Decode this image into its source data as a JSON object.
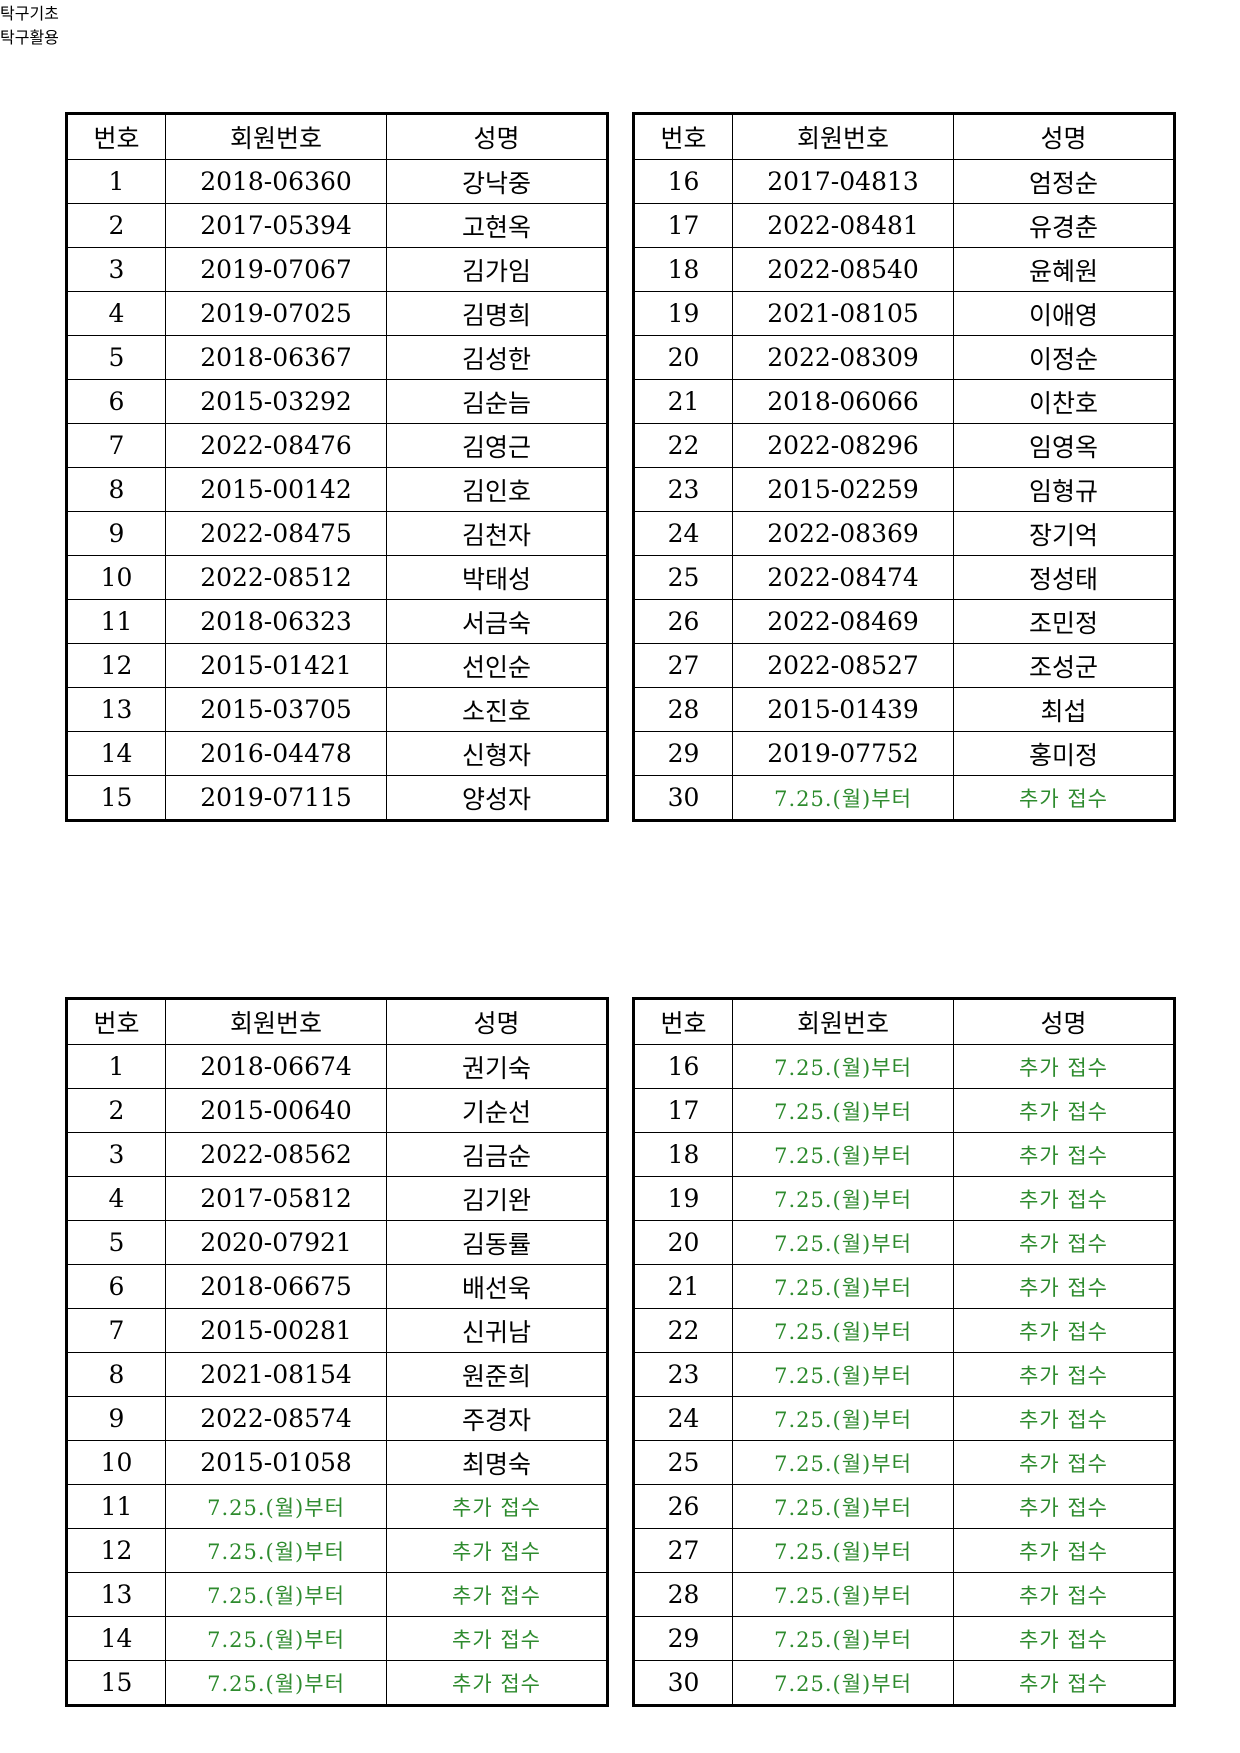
{
  "sections": [
    {
      "title": "탁구기초",
      "tables": [
        {
          "headers": [
            "번호",
            "회원번호",
            "성명"
          ],
          "rows": [
            [
              1,
              "2018-06360",
              "강낙중"
            ],
            [
              2,
              "2017-05394",
              "고현옥"
            ],
            [
              3,
              "2019-07067",
              "김가임"
            ],
            [
              4,
              "2019-07025",
              "김명희"
            ],
            [
              5,
              "2018-06367",
              "김성한"
            ],
            [
              6,
              "2015-03292",
              "김순늠"
            ],
            [
              7,
              "2022-08476",
              "김영근"
            ],
            [
              8,
              "2015-00142",
              "김인호"
            ],
            [
              9,
              "2022-08475",
              "김천자"
            ],
            [
              10,
              "2022-08512",
              "박태성"
            ],
            [
              11,
              "2018-06323",
              "서금숙"
            ],
            [
              12,
              "2015-01421",
              "선인순"
            ],
            [
              13,
              "2015-03705",
              "소진호"
            ],
            [
              14,
              "2016-04478",
              "신형자"
            ],
            [
              15,
              "2019-07115",
              "양성자"
            ]
          ]
        },
        {
          "headers": [
            "번호",
            "회원번호",
            "성명"
          ],
          "rows": [
            [
              16,
              "2017-04813",
              "엄정순"
            ],
            [
              17,
              "2022-08481",
              "유경춘"
            ],
            [
              18,
              "2022-08540",
              "윤혜원"
            ],
            [
              19,
              "2021-08105",
              "이애영"
            ],
            [
              20,
              "2022-08309",
              "이정순"
            ],
            [
              21,
              "2018-06066",
              "이찬호"
            ],
            [
              22,
              "2022-08296",
              "임영옥"
            ],
            [
              23,
              "2015-02259",
              "임형규"
            ],
            [
              24,
              "2022-08369",
              "장기억"
            ],
            [
              25,
              "2022-08474",
              "정성태"
            ],
            [
              26,
              "2022-08469",
              "조민정"
            ],
            [
              27,
              "2022-08527",
              "조성군"
            ],
            [
              28,
              "2015-01439",
              "최섭"
            ],
            [
              29,
              "2019-07752",
              "홍미정"
            ],
            [
              30,
              "7.25.(월)부터",
              "추가 접수"
            ]
          ]
        }
      ]
    },
    {
      "title": "탁구활용",
      "tables": [
        {
          "headers": [
            "번호",
            "회원번호",
            "성명"
          ],
          "rows": [
            [
              1,
              "2018-06674",
              "권기숙"
            ],
            [
              2,
              "2015-00640",
              "기순선"
            ],
            [
              3,
              "2022-08562",
              "김금순"
            ],
            [
              4,
              "2017-05812",
              "김기완"
            ],
            [
              5,
              "2020-07921",
              "김동률"
            ],
            [
              6,
              "2018-06675",
              "배선욱"
            ],
            [
              7,
              "2015-00281",
              "신귀남"
            ],
            [
              8,
              "2021-08154",
              "원준희"
            ],
            [
              9,
              "2022-08574",
              "주경자"
            ],
            [
              10,
              "2015-01058",
              "최명숙"
            ],
            [
              11,
              "7.25.(월)부터",
              "추가 접수"
            ],
            [
              12,
              "7.25.(월)부터",
              "추가 접수"
            ],
            [
              13,
              "7.25.(월)부터",
              "추가 접수"
            ],
            [
              14,
              "7.25.(월)부터",
              "추가 접수"
            ],
            [
              15,
              "7.25.(월)부터",
              "추가 접수"
            ]
          ]
        },
        {
          "headers": [
            "번호",
            "회원번호",
            "성명"
          ],
          "rows": [
            [
              16,
              "7.25.(월)부터",
              "추가 접수"
            ],
            [
              17,
              "7.25.(월)부터",
              "추가 접수"
            ],
            [
              18,
              "7.25.(월)부터",
              "추가 접수"
            ],
            [
              19,
              "7.25.(월)부터",
              "추가 접수"
            ],
            [
              20,
              "7.25.(월)부터",
              "추가 접수"
            ],
            [
              21,
              "7.25.(월)부터",
              "추가 접수"
            ],
            [
              22,
              "7.25.(월)부터",
              "추가 접수"
            ],
            [
              23,
              "7.25.(월)부터",
              "추가 접수"
            ],
            [
              24,
              "7.25.(월)부터",
              "추가 접수"
            ],
            [
              25,
              "7.25.(월)부터",
              "추가 접수"
            ],
            [
              26,
              "7.25.(월)부터",
              "추가 접수"
            ],
            [
              27,
              "7.25.(월)부터",
              "추가 접수"
            ],
            [
              28,
              "7.25.(월)부터",
              "추가 접수"
            ],
            [
              29,
              "7.25.(월)부터",
              "추가 접수"
            ],
            [
              30,
              "7.25.(월)부터",
              "추가 접수"
            ]
          ]
        }
      ]
    }
  ]
}
